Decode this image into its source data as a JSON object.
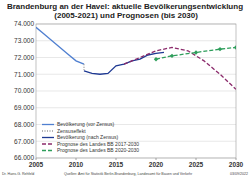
{
  "chart_data": {
    "type": "line",
    "title": "Brandenburg an der Havel: aktuelle Bevölkerungsentwicklung (2005-2021) und Prognosen (bis 2030)",
    "annotations": [
      "Dr. Hans-G. Rehfeld",
      "Quellen: Amt für Statistik Berlin-Brandenburg, Landesamt für Bauen und Verkehr",
      "03/09/2022"
    ],
    "xlim": [
      2005,
      2030
    ],
    "xticks": [
      2005,
      2010,
      2015,
      2020,
      2025,
      2030
    ],
    "ylim": [
      66000,
      74000
    ],
    "yticks": [
      {
        "value": 66000,
        "label": "66.000"
      },
      {
        "value": 67000,
        "label": "67.000"
      },
      {
        "value": 68000,
        "label": "68.000"
      },
      {
        "value": 69000,
        "label": "69.000"
      },
      {
        "value": 70000,
        "label": "70.000"
      },
      {
        "value": 71000,
        "label": "71.000"
      },
      {
        "value": 72000,
        "label": "72.000"
      },
      {
        "value": 73000,
        "label": "73.000"
      },
      {
        "value": 74000,
        "label": "74.000"
      }
    ],
    "grid": true,
    "legend": "lower left",
    "series": [
      {
        "name": "Bevölkerung (vor Zensus)",
        "color": "#4f7fd0",
        "line_style": "solid",
        "x": [
          2005,
          2006,
          2007,
          2008,
          2009,
          2010,
          2011
        ],
        "values": [
          73800,
          73400,
          73000,
          72600,
          72200,
          71800,
          71600
        ]
      },
      {
        "name": "Zensuseffekt",
        "color": "#999999",
        "line_style": "dotted",
        "x": [
          2011,
          2011
        ],
        "values": [
          71600,
          71200
        ]
      },
      {
        "name": "Bevölkerung (nach Zensus)",
        "color": "#1f3a93",
        "line_style": "solid",
        "x": [
          2011,
          2012,
          2013,
          2014,
          2015,
          2016,
          2017,
          2018,
          2019,
          2020,
          2021
        ],
        "values": [
          71200,
          71050,
          71000,
          71050,
          71500,
          71600,
          71800,
          71900,
          72150,
          72250,
          72300
        ]
      },
      {
        "name": "Prognose des Landes BB 2017-2030",
        "color": "#8b2a6b",
        "line_style": "dashed",
        "x": [
          2016,
          2018,
          2020,
          2022,
          2024,
          2026,
          2028,
          2030
        ],
        "values": [
          71600,
          72000,
          72400,
          72600,
          72400,
          71800,
          71000,
          70100
        ]
      },
      {
        "name": "Prognose des Landes BB 2020-2030",
        "color": "#2e9e5b",
        "line_style": "dashed",
        "marker": "diamond",
        "x": [
          2020,
          2022,
          2025,
          2028,
          2030
        ],
        "values": [
          71900,
          72100,
          72300,
          72500,
          72600
        ]
      }
    ]
  }
}
